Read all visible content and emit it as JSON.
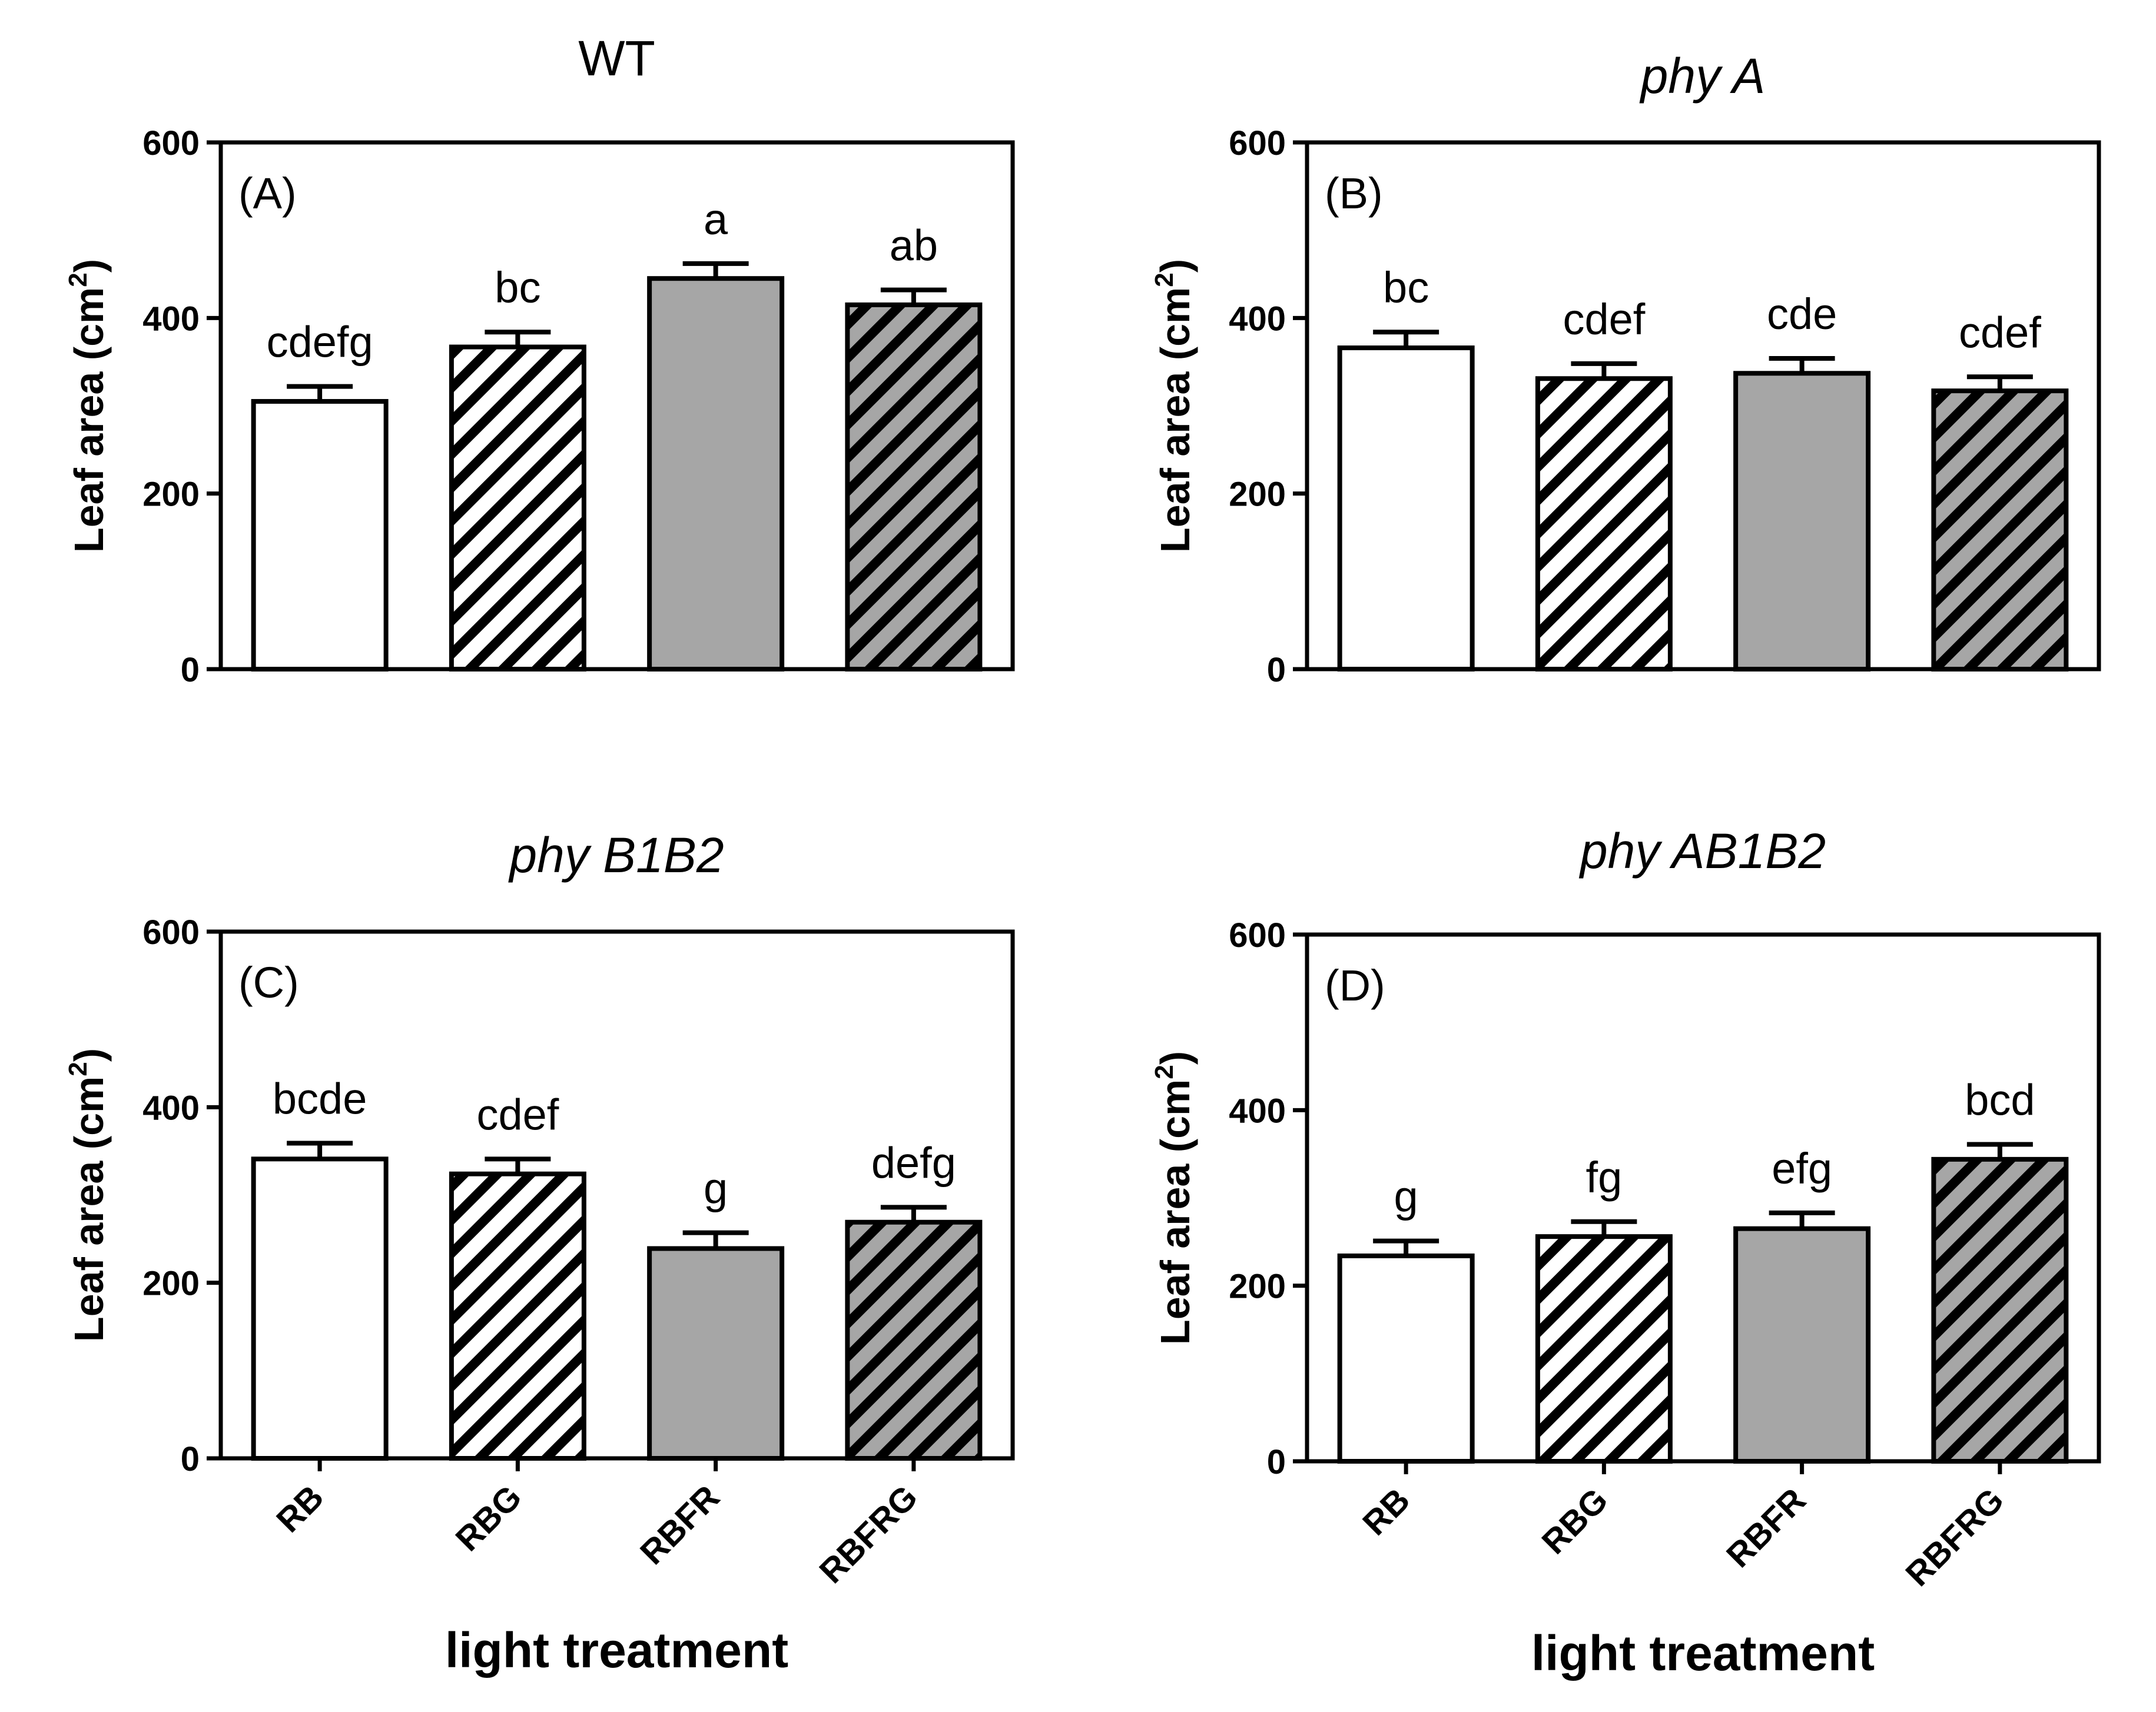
{
  "chart_data": [
    {
      "type": "bar",
      "title": "WT",
      "title_italic": false,
      "panel_label": "(A)",
      "categories": [
        "RB",
        "RBG",
        "RBFR",
        "RBFRG"
      ],
      "values": [
        305,
        367,
        445,
        415
      ],
      "errors": [
        17,
        17,
        17,
        17
      ],
      "significance": [
        "cdefg",
        "bc",
        "a",
        "ab"
      ],
      "ylabel": "Leaf area (cm",
      "ylabel_sup": "2",
      "ylabel_close": ")",
      "ylim": [
        0,
        600
      ],
      "yticks": [
        "0",
        "200",
        "400",
        "600"
      ],
      "xlabel": "",
      "show_xticks": false
    },
    {
      "type": "bar",
      "title": "phy A",
      "title_italic": true,
      "panel_label": "(B)",
      "categories": [
        "RB",
        "RBG",
        "RBFR",
        "RBFRG"
      ],
      "values": [
        366,
        331,
        337,
        317
      ],
      "errors": [
        18,
        17,
        17,
        16
      ],
      "significance": [
        "bc",
        "cdef",
        "cde",
        "cdef"
      ],
      "ylabel": "Leaf area (cm",
      "ylabel_sup": "2",
      "ylabel_close": ")",
      "ylim": [
        0,
        600
      ],
      "yticks": [
        "0",
        "200",
        "400",
        "600"
      ],
      "xlabel": "",
      "show_xticks": false
    },
    {
      "type": "bar",
      "title": "phy B1B2",
      "title_italic": true,
      "panel_label": "(C)",
      "categories": [
        "RB",
        "RBG",
        "RBFR",
        "RBFRG"
      ],
      "values": [
        341,
        324,
        239,
        269
      ],
      "errors": [
        18,
        17,
        18,
        17
      ],
      "significance": [
        "bcde",
        "cdef",
        "g",
        "defg"
      ],
      "ylabel": "Leaf area (cm",
      "ylabel_sup": "2",
      "ylabel_close": ")",
      "ylim": [
        0,
        600
      ],
      "yticks": [
        "0",
        "200",
        "400",
        "600"
      ],
      "xlabel": "light treatment",
      "show_xticks": true
    },
    {
      "type": "bar",
      "title": "phy AB1B2",
      "title_italic": true,
      "panel_label": "(D)",
      "categories": [
        "RB",
        "RBG",
        "RBFR",
        "RBFRG"
      ],
      "values": [
        234,
        256,
        265,
        344
      ],
      "errors": [
        17,
        17,
        18,
        17
      ],
      "significance": [
        "g",
        "fg",
        "efg",
        "bcd"
      ],
      "ylabel": "Leaf area (cm",
      "ylabel_sup": "2",
      "ylabel_close": ")",
      "ylim": [
        0,
        600
      ],
      "yticks": [
        "0",
        "200",
        "400",
        "600"
      ],
      "xlabel": "light treatment",
      "show_xticks": true
    }
  ],
  "colors": {
    "white_fill": "#ffffff",
    "gray_fill": "#a6a6a6",
    "stroke": "#000000",
    "hatch": "#000000"
  },
  "bar_styles": [
    "white",
    "white-hatch",
    "gray",
    "gray-hatch"
  ]
}
